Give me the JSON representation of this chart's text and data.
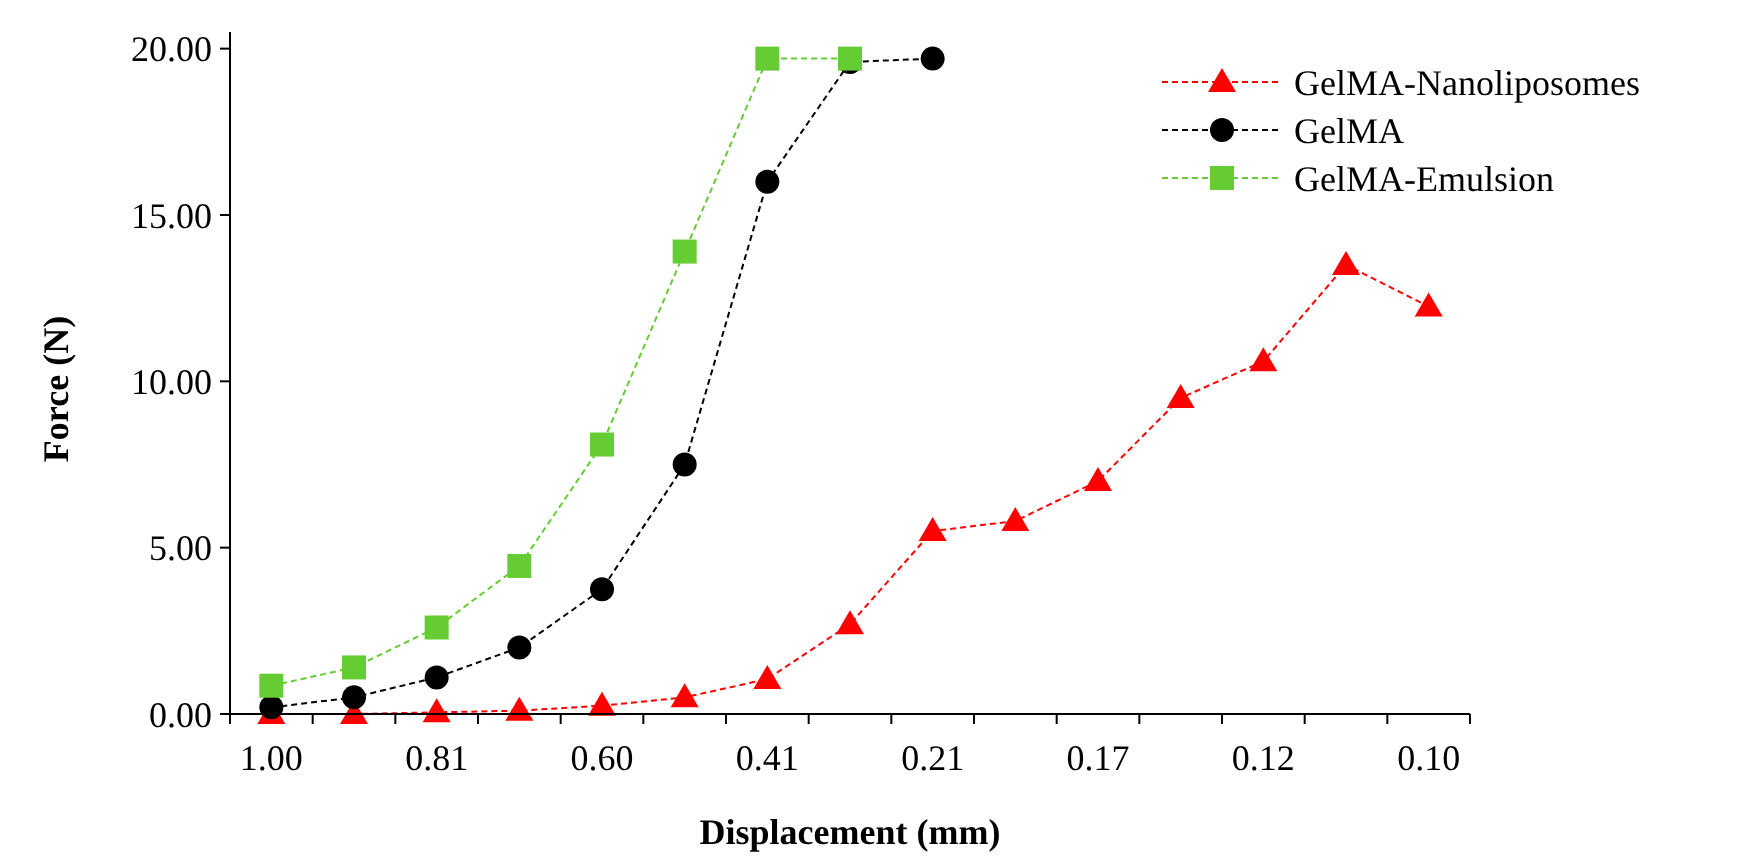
{
  "chart_data": {
    "type": "line",
    "xlabel": "Displacement (mm)",
    "ylabel": "Force (N)",
    "categories": [
      "1.00",
      null,
      "0.81",
      null,
      "0.60",
      null,
      "0.41",
      null,
      "0.21",
      null,
      "0.17",
      null,
      "0.12",
      null,
      "0.10"
    ],
    "ylim": [
      0,
      20.5
    ],
    "yticks": [
      {
        "value": 0,
        "label": "0.00"
      },
      {
        "value": 5,
        "label": "5.00"
      },
      {
        "value": 10,
        "label": "10.00"
      },
      {
        "value": 15,
        "label": "15.00"
      },
      {
        "value": 20,
        "label": "20.00"
      }
    ],
    "grid": false,
    "legend": "top right",
    "line_style": "dashed",
    "series": [
      {
        "name": "GelMA-Nanoliposomes",
        "color": "#ff0000",
        "marker": "triangle",
        "values": [
          0,
          0,
          0.05,
          0.1,
          0.25,
          0.5,
          1.05,
          2.7,
          5.5,
          5.8,
          7.0,
          9.5,
          10.6,
          13.5,
          12.25
        ]
      },
      {
        "name": "GelMA",
        "color": "#000000",
        "marker": "circle",
        "values": [
          0.2,
          0.5,
          1.1,
          2.0,
          3.75,
          7.5,
          16.0,
          19.6,
          19.7,
          null,
          null,
          null,
          null,
          null,
          null
        ]
      },
      {
        "name": "GelMA-Emulsion",
        "color": "#66cc33",
        "marker": "square",
        "values": [
          0.85,
          1.4,
          2.6,
          4.45,
          8.1,
          13.9,
          19.7,
          19.7,
          null,
          null,
          null,
          null,
          null,
          null,
          null
        ]
      }
    ]
  }
}
